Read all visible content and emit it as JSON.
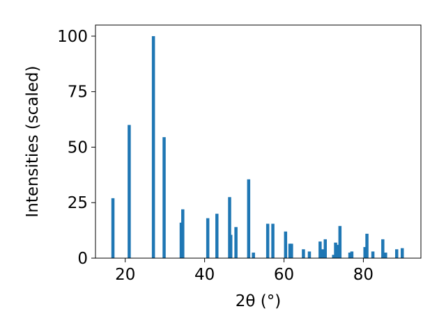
{
  "chart_data": {
    "type": "bar",
    "xlabel": "2θ (°)",
    "ylabel": "Intensities (scaled)",
    "xlim": [
      12.5,
      94.5
    ],
    "ylim": [
      0,
      105
    ],
    "xticks": [
      20,
      40,
      60,
      80
    ],
    "yticks": [
      0,
      25,
      50,
      75,
      100
    ],
    "bar_color": "#1f77b4",
    "grid": false,
    "series": [
      {
        "x": [
          16.9,
          21.0,
          27.1,
          29.8,
          34.1,
          34.5,
          40.8,
          43.1,
          46.3,
          46.6,
          47.9,
          51.1,
          52.3,
          55.9,
          57.2,
          60.4,
          61.5,
          61.9,
          64.9,
          66.4,
          69.1,
          69.8,
          70.4,
          72.5,
          73.0,
          73.5,
          74.1,
          76.6,
          77.1,
          80.4,
          80.9,
          82.4,
          84.9,
          85.6,
          88.4,
          89.8
        ],
        "values": [
          27,
          60,
          100,
          54.5,
          16,
          22,
          18,
          20,
          27.5,
          10.5,
          14,
          35.5,
          2.5,
          15.5,
          15.5,
          12,
          6.5,
          6.5,
          4,
          3,
          7.5,
          4,
          8.5,
          1.5,
          7,
          6,
          14.5,
          2.5,
          3,
          5,
          11,
          3,
          8.5,
          2.5,
          4,
          4.5
        ]
      }
    ]
  }
}
